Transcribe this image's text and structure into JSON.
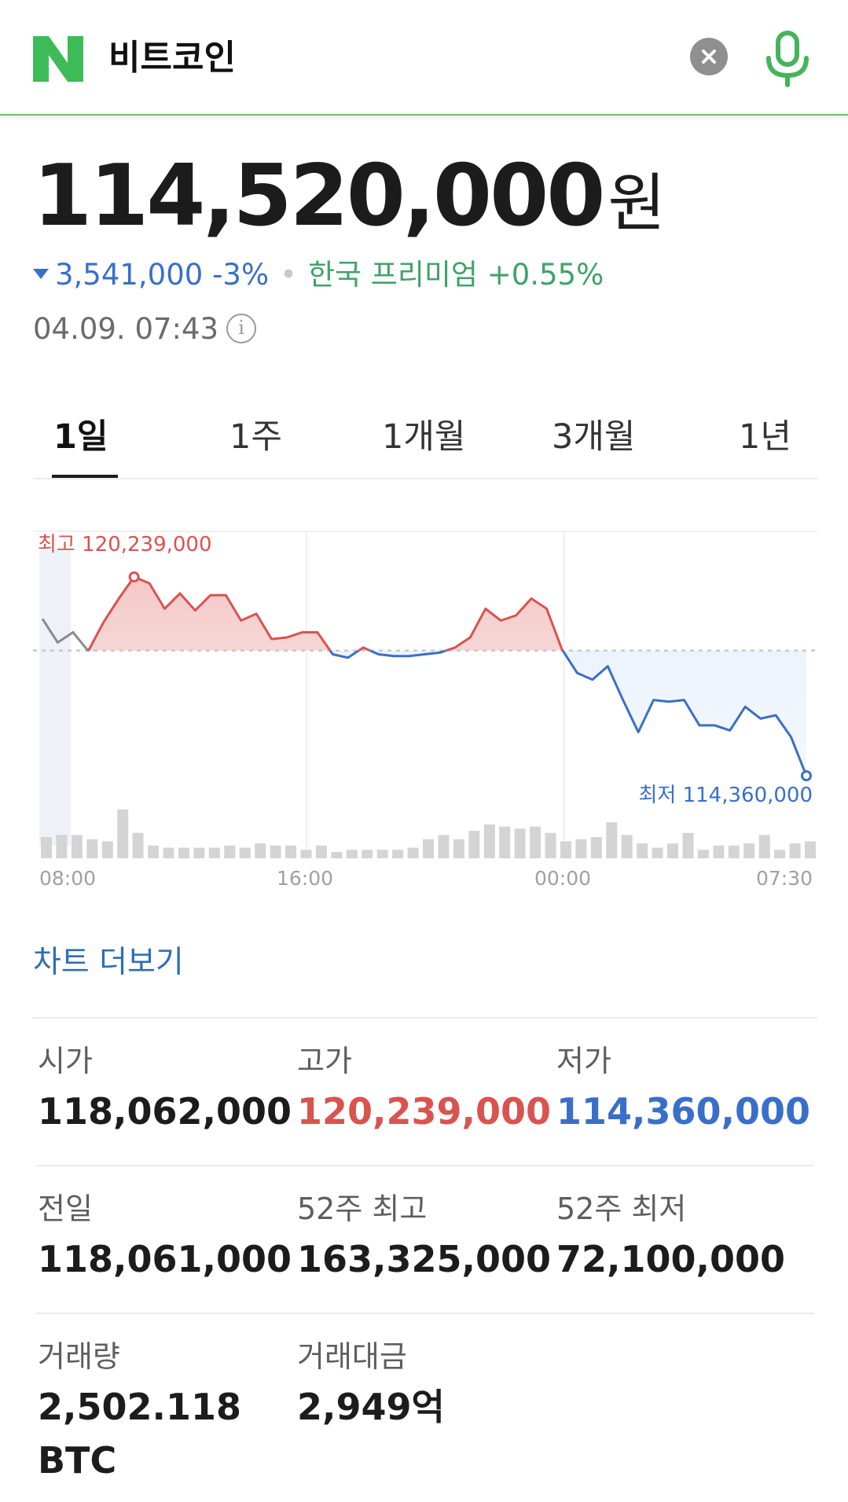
{
  "header": {
    "query": "비트코인",
    "clear_icon": "close-icon",
    "mic_icon": "microphone-icon",
    "logo_icon": "naver-n-logo",
    "accent_color": "#03c75a"
  },
  "price": {
    "value": "114,520,000",
    "unit": "원",
    "change": "3,541,000 -3%",
    "change_direction": "down",
    "premium": "한국 프리미엄 +0.55%",
    "timestamp": "04.09. 07:43"
  },
  "tabs": [
    {
      "label": "1일",
      "active": true
    },
    {
      "label": "1주",
      "active": false
    },
    {
      "label": "1개월",
      "active": false
    },
    {
      "label": "3개월",
      "active": false
    },
    {
      "label": "1년",
      "active": false
    }
  ],
  "chart_data": {
    "type": "line",
    "x_ticks": [
      "08:00",
      "16:00",
      "00:00",
      "07:30"
    ],
    "high_label": "최고 120,239,000",
    "low_label": "최저 114,360,000",
    "high": 120239000,
    "low": 114360000,
    "reference_close": 118061000,
    "ylim": [
      114360000,
      120239000
    ],
    "series": [
      {
        "values": [
          119000000,
          118300000,
          118600000,
          118050000,
          118900000,
          119600000,
          120239000,
          120050000,
          119300000,
          119750000,
          119250000,
          119700000,
          119700000,
          118950000,
          119150000,
          118400000,
          118450000,
          118600000,
          118600000,
          117950000,
          117850000,
          118150000,
          117950000,
          117900000,
          117900000,
          117950000,
          118000000,
          118150000,
          118450000,
          119300000,
          118950000,
          119100000,
          119600000,
          119300000,
          118100000,
          117400000,
          117200000,
          117600000,
          116600000,
          115650000,
          116600000,
          116550000,
          116600000,
          115850000,
          115850000,
          115700000,
          116400000,
          116050000,
          116150000,
          115500000,
          114360000
        ]
      }
    ],
    "volume": [
      20,
      22,
      22,
      18,
      16,
      46,
      24,
      12,
      10,
      10,
      10,
      10,
      12,
      10,
      14,
      12,
      12,
      8,
      12,
      6,
      8,
      8,
      8,
      8,
      10,
      18,
      22,
      18,
      26,
      32,
      30,
      28,
      30,
      24,
      16,
      18,
      20,
      34,
      22,
      14,
      10,
      14,
      24,
      8,
      12,
      12,
      14,
      22,
      8,
      14,
      16
    ],
    "colors": {
      "above": "#d9534f",
      "below": "#3a6fc9",
      "before": "#8a8a8a",
      "volume": "#d4d4d4"
    }
  },
  "more_chart_label": "차트 더보기",
  "stats": [
    {
      "label": "시가",
      "value": "118,062,000",
      "tone": ""
    },
    {
      "label": "고가",
      "value": "120,239,000",
      "tone": "red"
    },
    {
      "label": "저가",
      "value": "114,360,000",
      "tone": "blue"
    },
    {
      "label": "전일",
      "value": "118,061,000",
      "tone": ""
    },
    {
      "label": "52주 최고",
      "value": "163,325,000",
      "tone": ""
    },
    {
      "label": "52주 최저",
      "value": "72,100,000",
      "tone": ""
    },
    {
      "label": "거래량",
      "value": "2,502.118",
      "value2": "BTC",
      "tone": ""
    },
    {
      "label": "거래대금",
      "value": "2,949억",
      "tone": ""
    }
  ]
}
